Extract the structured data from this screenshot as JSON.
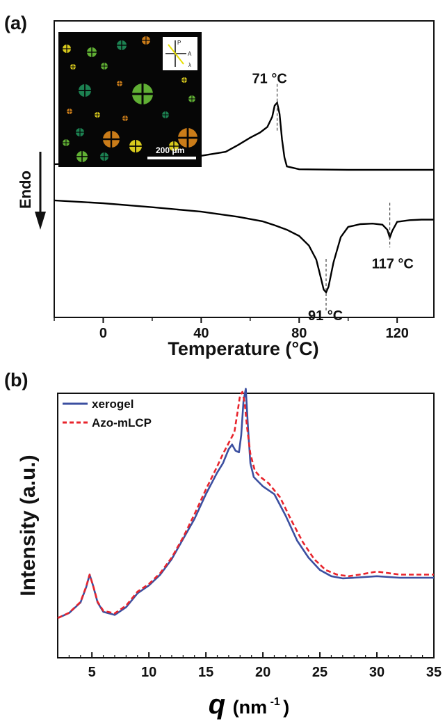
{
  "panels": {
    "a_label": "(a)",
    "b_label": "(b)"
  },
  "chart_data": [
    {
      "type": "line",
      "panel": "(a)",
      "xlabel": "Temperature (°C)",
      "ylabel": "",
      "endo_label": "Endo",
      "xlim": [
        -20,
        135
      ],
      "xticks": [
        0,
        40,
        80,
        120
      ],
      "xtick_labels": [
        "0",
        "40",
        "80",
        "120"
      ],
      "series": [
        {
          "role": "heating",
          "color": "#000000",
          "x": [
            -20,
            0,
            20,
            40,
            50,
            55,
            60,
            64,
            67,
            69,
            70,
            71,
            72,
            73,
            74,
            75,
            80,
            100,
            120,
            135
          ],
          "y": [
            1.6,
            1.9,
            2.4,
            3.1,
            3.8,
            5.0,
            6.3,
            7.2,
            8.2,
            10.0,
            12.0,
            12.5,
            10.5,
            6.0,
            2.8,
            1.2,
            0.7,
            0.6,
            0.6,
            0.6
          ]
        },
        {
          "role": "cooling",
          "color": "#000000",
          "x": [
            -20,
            0,
            20,
            40,
            55,
            65,
            70,
            75,
            80,
            84,
            87,
            89,
            90,
            91,
            92,
            94,
            97,
            100,
            105,
            110,
            114,
            116,
            117,
            118,
            120,
            125,
            130,
            135
          ],
          "y": [
            -1.5,
            -2.0,
            -2.7,
            -3.5,
            -4.4,
            -5.2,
            -5.9,
            -6.7,
            -7.8,
            -9.5,
            -12.0,
            -15.5,
            -17.3,
            -17.8,
            -16.8,
            -12.5,
            -8.0,
            -6.2,
            -5.7,
            -5.6,
            -5.8,
            -6.7,
            -8.1,
            -6.9,
            -5.3,
            -5.0,
            -4.9,
            -4.9
          ]
        }
      ],
      "annotations": [
        {
          "text": "71 °C",
          "x": 71
        },
        {
          "text": "91 °C",
          "x": 91
        },
        {
          "text": "117 °C",
          "x": 117
        }
      ],
      "inset": {
        "kind": "polarized optical micrograph",
        "scale_bar_label": "200 μm",
        "polarizer_labels": [
          "P",
          "A",
          "λ"
        ]
      }
    },
    {
      "type": "line",
      "panel": "(b)",
      "xlabel_symbol": "q",
      "xlabel_unit": "(nm",
      "xlabel_exponent": "-1",
      "xlabel_close": ")",
      "ylabel": "Intensity (a.u.)",
      "xlim": [
        2,
        35
      ],
      "xticks": [
        5,
        10,
        15,
        20,
        25,
        30,
        35
      ],
      "xtick_labels": [
        "5",
        "10",
        "15",
        "20",
        "25",
        "30",
        "35"
      ],
      "legend": "top-left",
      "series": [
        {
          "name": "xerogel",
          "color": "#3b4fa0",
          "dash": "solid",
          "x": [
            2,
            3,
            4,
            4.5,
            4.8,
            5.1,
            5.5,
            6,
            7,
            8,
            9,
            10,
            11,
            12,
            13,
            14,
            15,
            16,
            16.5,
            17,
            17.3,
            17.6,
            17.9,
            18.1,
            18.3,
            18.5,
            18.7,
            18.9,
            19.2,
            19.6,
            20,
            21,
            22,
            23,
            24,
            25,
            26,
            27,
            28,
            30,
            32,
            35
          ],
          "y": [
            7.0,
            8.6,
            12.0,
            17.0,
            21.0,
            17.5,
            12.0,
            9.0,
            8.0,
            10.5,
            15.0,
            17.5,
            21.0,
            26.0,
            32.5,
            39.0,
            47.0,
            54.0,
            57.0,
            61.5,
            63.0,
            61.0,
            60.5,
            66.0,
            77.0,
            81.0,
            68.0,
            57.0,
            52.5,
            51.0,
            49.5,
            47.0,
            40.0,
            32.0,
            26.5,
            22.5,
            20.5,
            19.8,
            20.0,
            20.5,
            20.0,
            20.0
          ]
        },
        {
          "name": "Azo-mLCP",
          "color": "#e8242c",
          "dash": "dashed",
          "x": [
            2,
            3,
            4,
            4.5,
            4.8,
            5.1,
            5.5,
            6,
            7,
            8,
            9,
            10,
            11,
            12,
            13,
            14,
            15,
            16,
            16.5,
            17,
            17.5,
            17.8,
            18.0,
            18.2,
            18.4,
            18.6,
            18.9,
            19.3,
            19.8,
            20.5,
            21.5,
            22.5,
            23.5,
            24.5,
            25.5,
            26.5,
            27.5,
            28.5,
            30,
            32,
            35
          ],
          "y": [
            7.0,
            8.7,
            12.2,
            17.2,
            21.0,
            17.5,
            12.2,
            9.3,
            8.5,
            11.0,
            15.5,
            18.0,
            21.5,
            26.5,
            33.0,
            40.5,
            48.5,
            56.0,
            60.0,
            63.5,
            67.0,
            74.0,
            79.0,
            80.0,
            76.5,
            69.0,
            60.0,
            54.5,
            52.5,
            50.5,
            46.0,
            38.5,
            31.5,
            26.0,
            22.5,
            21.0,
            20.5,
            21.0,
            22.0,
            21.0,
            21.0
          ]
        }
      ]
    }
  ]
}
